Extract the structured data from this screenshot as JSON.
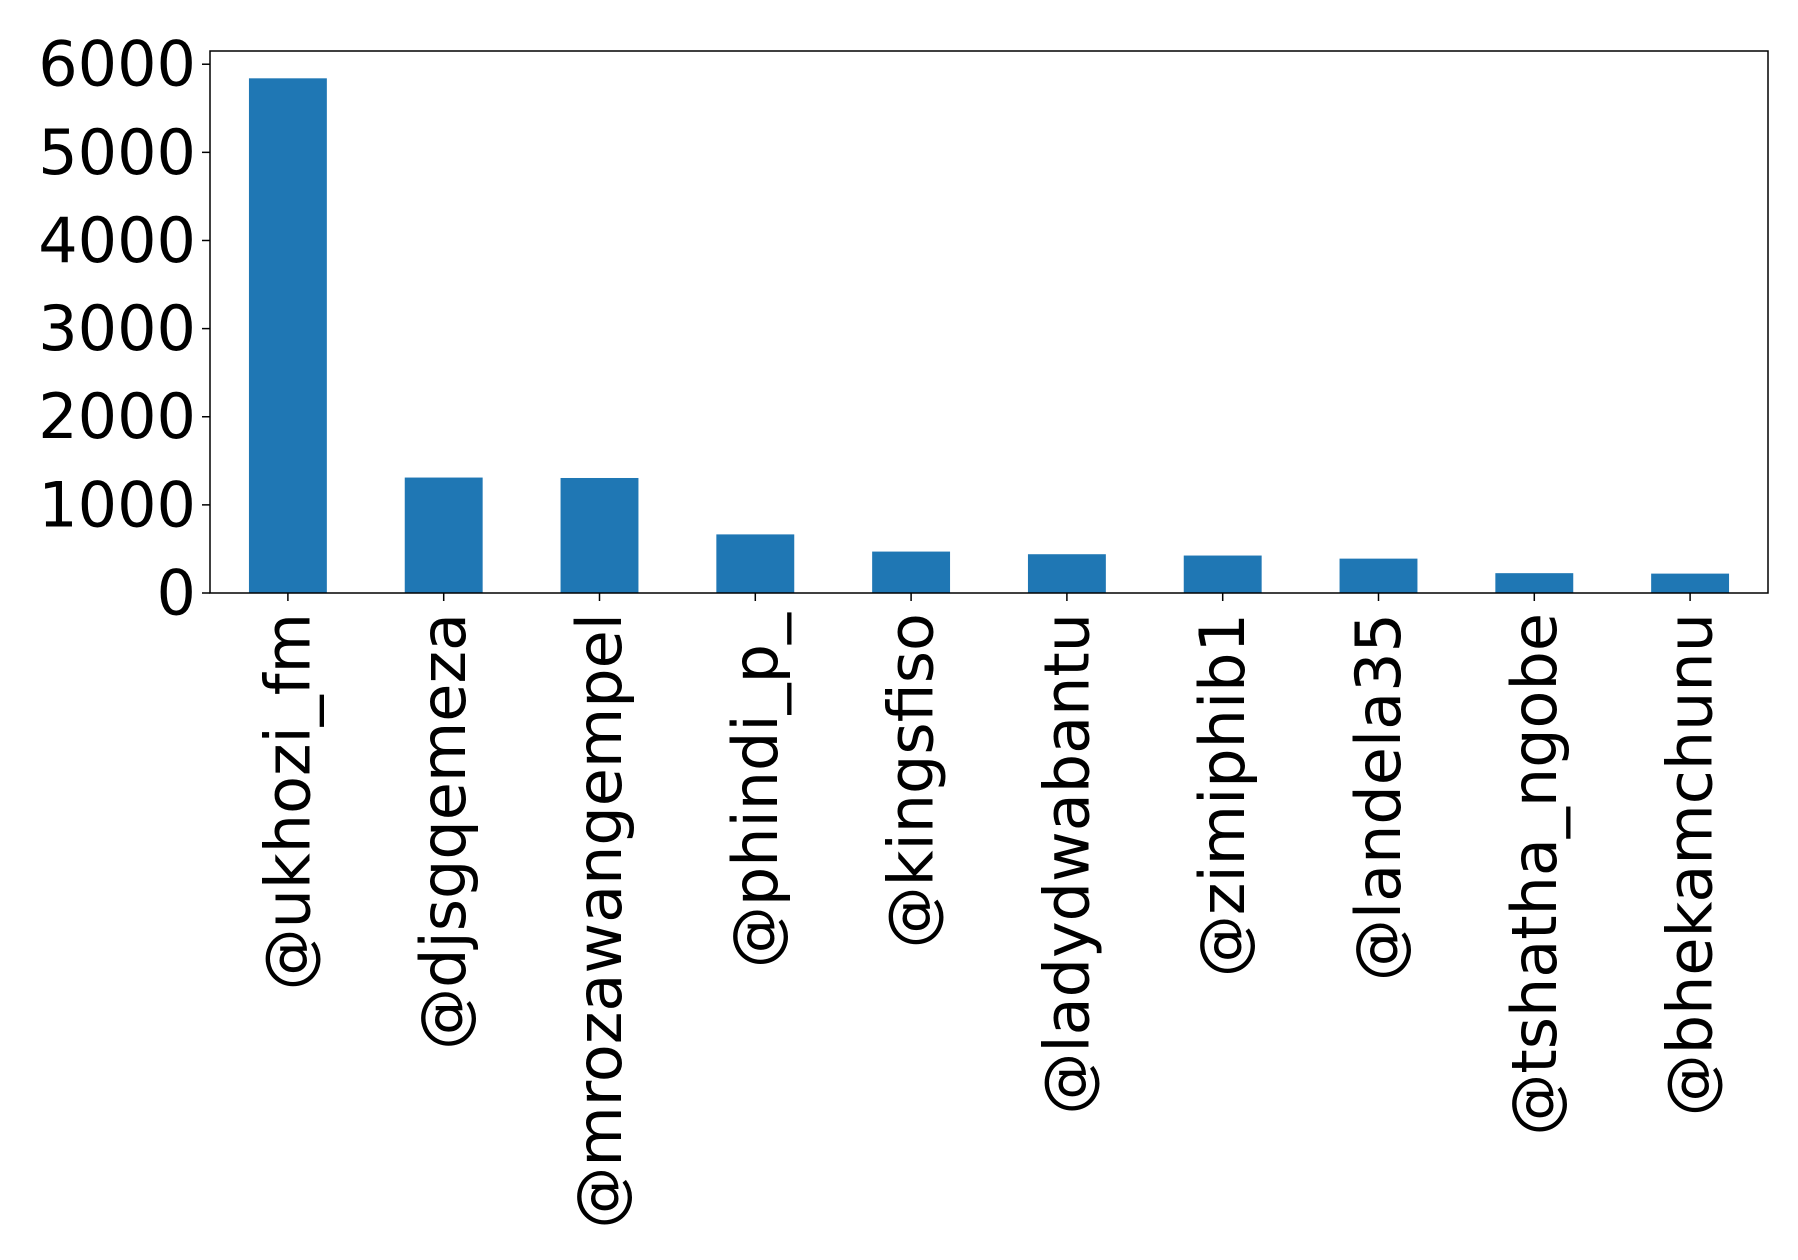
{
  "chart_data": {
    "type": "bar",
    "title": "",
    "xlabel": "",
    "ylabel": "",
    "categories": [
      "@ukhozi_fm",
      "@djsgqemeza",
      "@mrozawangempel",
      "@phindi_p_",
      "@kingsfiso",
      "@ladydwabantu",
      "@zimiphib1",
      "@landela35",
      "@tshatha_ngobe",
      "@bhekamchunu"
    ],
    "values": [
      5840,
      1310,
      1305,
      665,
      470,
      440,
      425,
      390,
      225,
      220
    ],
    "ylim": [
      0,
      6150
    ],
    "yticks": [
      0,
      1000,
      2000,
      3000,
      4000,
      5000,
      6000
    ],
    "bar_color": "#1f77b4",
    "grid": false,
    "legend": "none"
  }
}
